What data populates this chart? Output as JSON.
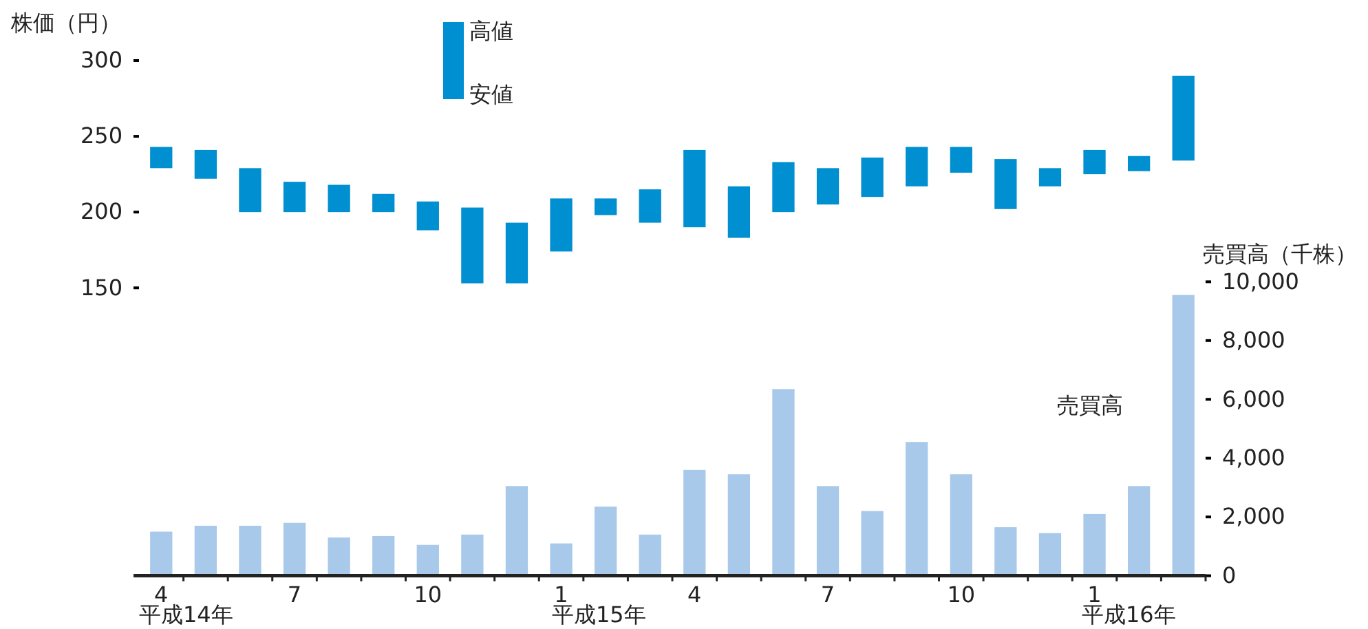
{
  "chart_data": {
    "type": "bar",
    "ylabel": "株価（円）",
    "y2label": "売買高（千株）",
    "categories": [
      "4",
      null,
      null,
      "7",
      null,
      null,
      "10",
      null,
      null,
      "1",
      null,
      null,
      "4",
      null,
      null,
      "7",
      null,
      null,
      "10",
      null,
      null,
      "1",
      null,
      null
    ],
    "series": [
      {
        "base": [
          229,
          222,
          200,
          200,
          200,
          200,
          188,
          153,
          153,
          174,
          198,
          193,
          190,
          183,
          200,
          205,
          210,
          217,
          226,
          202,
          217,
          225,
          227,
          234
        ],
        "values": [
          14,
          19,
          29,
          20,
          18,
          12,
          19,
          50,
          40,
          35,
          11,
          22,
          51,
          34,
          33,
          24,
          26,
          26,
          17,
          33,
          12,
          16,
          10,
          56
        ],
        "color": "#008fd0"
      },
      {
        "axis": "y2",
        "values": [
          1500,
          1700,
          1700,
          1800,
          1300,
          1350,
          1050,
          1400,
          3050,
          1100,
          2350,
          1400,
          3600,
          3450,
          6350,
          3050,
          2200,
          4550,
          3450,
          1650,
          1450,
          2100,
          3050,
          9550
        ],
        "color": "#a8c9ea"
      }
    ],
    "ylim": [
      -40,
      300
    ],
    "yticks": [
      150,
      200,
      250,
      300
    ],
    "y2lim": [
      0,
      10000
    ],
    "y2ticks": [
      0,
      {
        "value": 2000,
        "label": "2,000"
      },
      {
        "value": 4000,
        "label": "4,000"
      },
      {
        "value": 6000,
        "label": "6,000"
      },
      {
        "value": 8000,
        "label": "8,000"
      },
      {
        "value": 10000,
        "label": "10,000"
      }
    ],
    "annotations": [
      "高値",
      "安値",
      "売買高",
      "平成14年",
      "平成15年",
      "平成16年"
    ]
  }
}
